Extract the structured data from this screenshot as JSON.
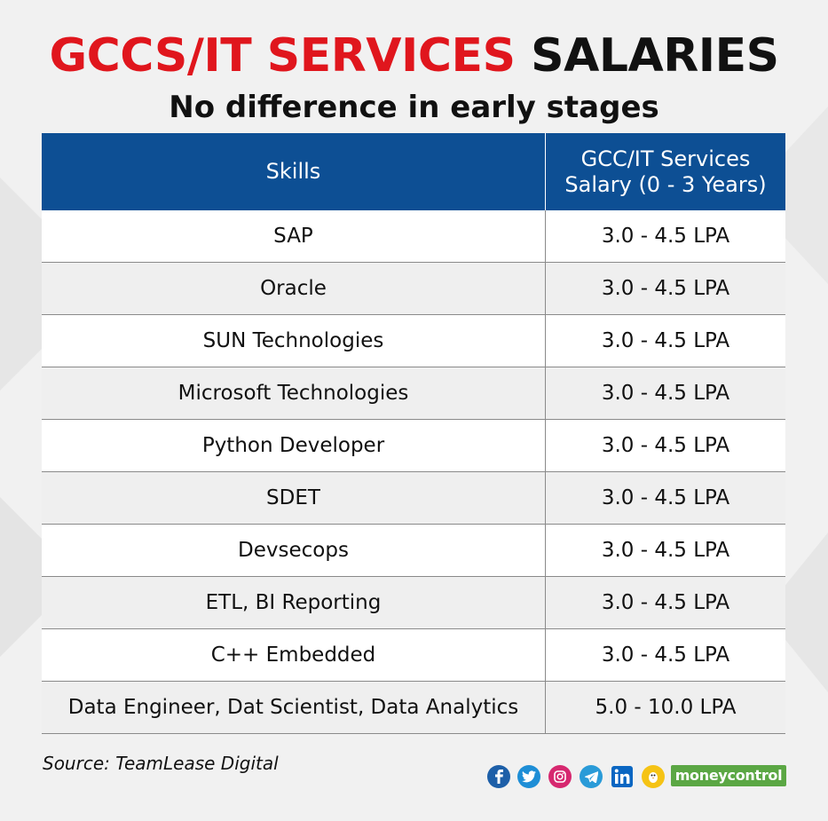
{
  "title": {
    "highlight": "GCCS/IT SERVICES",
    "rest": "SALARIES"
  },
  "subtitle": "No difference in early stages",
  "colors": {
    "title_red": "#e0161d",
    "header_blue": "#0d4f94",
    "brand_green": "#5ba744"
  },
  "chart_data": {
    "type": "table",
    "columns": [
      "Skills",
      "GCC/IT Services Salary (0 - 3 Years)"
    ],
    "column_lines": [
      [
        "Skills"
      ],
      [
        "GCC/IT Services",
        "Salary (0 - 3 Years)"
      ]
    ],
    "rows": [
      [
        "SAP",
        "3.0 - 4.5 LPA"
      ],
      [
        "Oracle",
        "3.0 - 4.5 LPA"
      ],
      [
        "SUN Technologies",
        "3.0 - 4.5 LPA"
      ],
      [
        "Microsoft Technologies",
        "3.0 - 4.5 LPA"
      ],
      [
        "Python Developer",
        "3.0 - 4.5 LPA"
      ],
      [
        "SDET",
        "3.0 - 4.5 LPA"
      ],
      [
        "Devsecops",
        "3.0 - 4.5 LPA"
      ],
      [
        "ETL, BI Reporting",
        "3.0 - 4.5 LPA"
      ],
      [
        "C++ Embedded",
        "3.0 - 4.5 LPA"
      ],
      [
        "Data Engineer, Dat Scientist, Data Analytics",
        "5.0 - 10.0 LPA"
      ]
    ]
  },
  "footer": {
    "source": "Source: TeamLease Digital",
    "social_icons": [
      "facebook-icon",
      "twitter-icon",
      "instagram-icon",
      "telegram-icon",
      "linkedin-icon",
      "koo-icon"
    ],
    "brand": "moneycontrol"
  }
}
